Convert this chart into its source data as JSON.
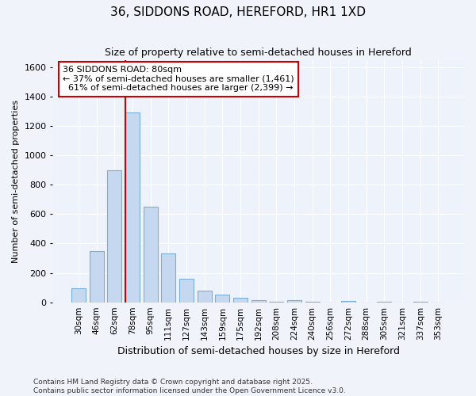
{
  "title": "36, SIDDONS ROAD, HEREFORD, HR1 1XD",
  "subtitle": "Size of property relative to semi-detached houses in Hereford",
  "xlabel": "Distribution of semi-detached houses by size in Hereford",
  "ylabel": "Number of semi-detached properties",
  "categories": [
    "30sqm",
    "46sqm",
    "62sqm",
    "78sqm",
    "95sqm",
    "111sqm",
    "127sqm",
    "143sqm",
    "159sqm",
    "175sqm",
    "192sqm",
    "208sqm",
    "224sqm",
    "240sqm",
    "256sqm",
    "272sqm",
    "288sqm",
    "305sqm",
    "321sqm",
    "337sqm",
    "353sqm"
  ],
  "values": [
    95,
    350,
    900,
    1290,
    650,
    330,
    160,
    80,
    50,
    30,
    15,
    5,
    15,
    5,
    0,
    10,
    0,
    5,
    0,
    5,
    0
  ],
  "bar_color": "#c5d8f0",
  "bar_edge_color": "#7bafd4",
  "highlight_line_color": "#cc0000",
  "highlight_bar_index": 3,
  "annotation_line1": "36 SIDDONS ROAD: 80sqm",
  "annotation_line2": "← 37% of semi-detached houses are smaller (1,461)",
  "annotation_line3": "  61% of semi-detached houses are larger (2,399) →",
  "annotation_box_color": "white",
  "annotation_box_edge_color": "#cc0000",
  "ylim_max": 1650,
  "yticks": [
    0,
    200,
    400,
    600,
    800,
    1000,
    1200,
    1400,
    1600
  ],
  "background_color": "#f0f4fa",
  "plot_background_color": "#edf2fb",
  "footer": "Contains HM Land Registry data © Crown copyright and database right 2025.\nContains public sector information licensed under the Open Government Licence v3.0."
}
